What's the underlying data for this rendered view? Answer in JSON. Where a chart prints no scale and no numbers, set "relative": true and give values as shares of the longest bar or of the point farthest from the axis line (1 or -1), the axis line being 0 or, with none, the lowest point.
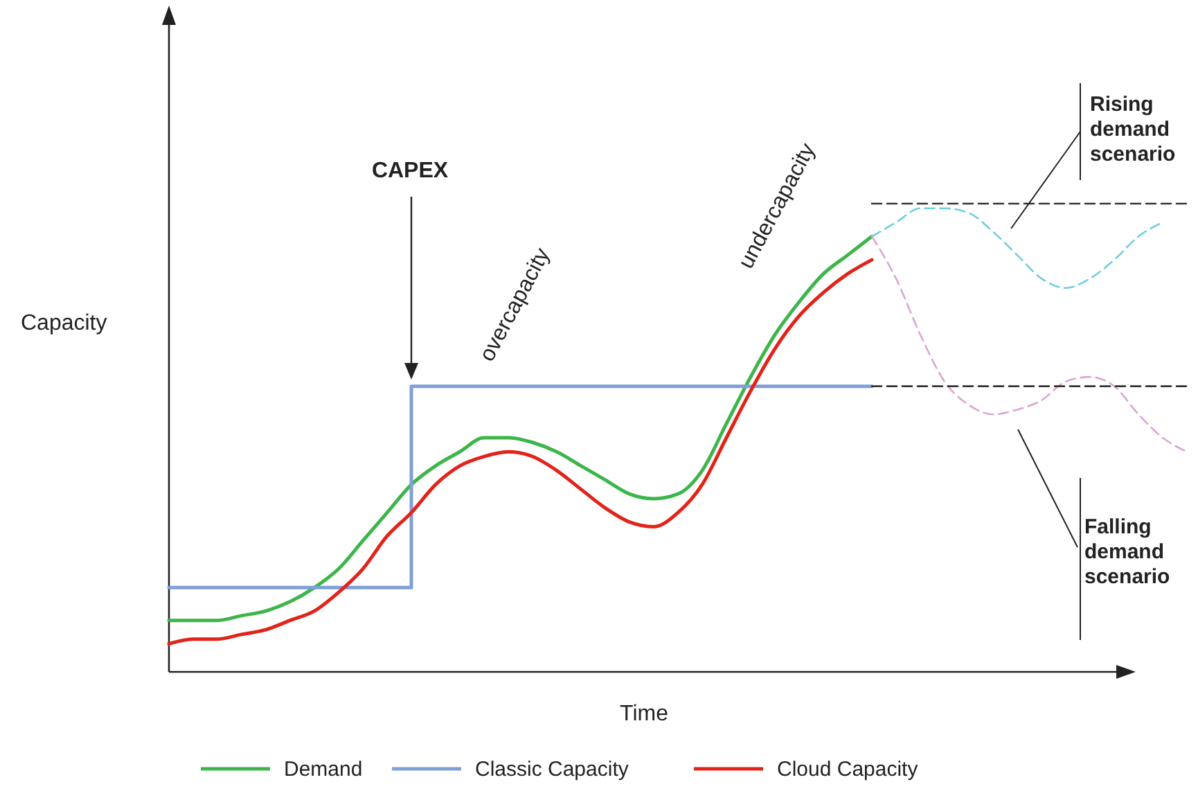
{
  "chart_data": {
    "type": "line",
    "relative": true,
    "xlabel": "Time",
    "ylabel": "Capacity",
    "legend": "bottom",
    "categories": [
      null,
      null,
      null,
      null,
      null,
      null,
      null,
      null,
      null,
      null,
      null,
      null,
      null,
      null,
      null,
      null,
      null,
      null,
      null,
      null,
      null,
      null,
      null,
      null,
      null,
      null,
      null,
      null,
      null,
      null,
      null,
      null,
      null,
      null,
      null,
      null,
      null,
      null,
      null,
      null,
      null,
      null,
      null
    ],
    "series": [
      {
        "name": "Demand",
        "color": "#3db54a",
        "values": [
          0.11,
          0.11,
          0.11,
          0.12,
          0.13,
          0.15,
          0.18,
          0.22,
          0.28,
          0.34,
          0.4,
          0.44,
          0.47,
          0.5,
          0.5,
          0.49,
          0.47,
          0.44,
          0.41,
          0.38,
          0.37,
          0.38,
          0.43,
          0.53,
          0.63,
          0.72,
          0.79,
          0.85,
          0.89,
          0.93,
          null,
          null,
          null,
          null,
          null,
          null,
          null,
          null,
          null,
          null,
          null,
          null,
          null
        ]
      },
      {
        "name": "Classic Capacity",
        "type": "step",
        "color": "#7f9fd6",
        "values": [
          0.18,
          0.18,
          0.18,
          0.18,
          0.18,
          0.18,
          0.18,
          0.18,
          0.18,
          0.18,
          0.61,
          0.61,
          0.61,
          0.61,
          0.61,
          0.61,
          0.61,
          0.61,
          0.61,
          0.61,
          0.61,
          0.61,
          0.61,
          0.61,
          0.61,
          0.61,
          0.61,
          0.61,
          0.61,
          0.61,
          null,
          null,
          null,
          null,
          null,
          null,
          null,
          null,
          null,
          null,
          null,
          null,
          null
        ]
      },
      {
        "name": "Cloud Capacity",
        "color": "#e2231a",
        "values": [
          0.06,
          0.07,
          0.07,
          0.08,
          0.09,
          0.11,
          0.13,
          0.17,
          0.22,
          0.29,
          0.34,
          0.4,
          0.44,
          0.46,
          0.47,
          0.46,
          0.43,
          0.39,
          0.35,
          0.32,
          0.31,
          0.34,
          0.4,
          0.5,
          0.6,
          0.69,
          0.76,
          0.81,
          0.85,
          0.88,
          null,
          null,
          null,
          null,
          null,
          null,
          null,
          null,
          null,
          null,
          null,
          null,
          null
        ]
      },
      {
        "color": "#6fcfdc",
        "line_style": "dashed",
        "values": [
          null,
          null,
          null,
          null,
          null,
          null,
          null,
          null,
          null,
          null,
          null,
          null,
          null,
          null,
          null,
          null,
          null,
          null,
          null,
          null,
          null,
          null,
          null,
          null,
          null,
          null,
          null,
          null,
          null,
          0.93,
          0.96,
          0.99,
          0.99,
          0.98,
          0.94,
          0.89,
          0.84,
          0.82,
          0.84,
          0.88,
          0.93,
          0.96,
          null
        ]
      },
      {
        "color": "#d9a6d2",
        "line_style": "dashed",
        "values": [
          null,
          null,
          null,
          null,
          null,
          null,
          null,
          null,
          null,
          null,
          null,
          null,
          null,
          null,
          null,
          null,
          null,
          null,
          null,
          null,
          null,
          null,
          null,
          null,
          null,
          null,
          null,
          null,
          null,
          0.93,
          0.84,
          0.72,
          0.62,
          0.57,
          0.55,
          0.56,
          0.58,
          0.62,
          0.63,
          0.61,
          0.55,
          0.5,
          0.47
        ]
      },
      {
        "color": "#333333",
        "line_style": "dashed",
        "values": [
          null,
          null,
          null,
          null,
          null,
          null,
          null,
          null,
          null,
          null,
          null,
          null,
          null,
          null,
          null,
          null,
          null,
          null,
          null,
          null,
          null,
          null,
          null,
          null,
          null,
          null,
          null,
          null,
          null,
          0.61,
          0.61,
          0.61,
          0.61,
          0.61,
          0.61,
          0.61,
          0.61,
          0.61,
          0.61,
          0.61,
          0.61,
          0.61,
          0.61
        ]
      },
      {
        "color": "#333333",
        "line_style": "dashed",
        "values": [
          null,
          null,
          null,
          null,
          null,
          null,
          null,
          null,
          null,
          null,
          null,
          null,
          null,
          null,
          null,
          null,
          null,
          null,
          null,
          null,
          null,
          null,
          null,
          null,
          null,
          null,
          null,
          null,
          null,
          1,
          1,
          1,
          1,
          1,
          1,
          1,
          1,
          1,
          1,
          1,
          1,
          1,
          1
        ]
      }
    ],
    "annotations": [
      "CAPEX",
      "overcapacity",
      "undercapacity",
      "Rising demand scenario",
      "Falling demand scenario"
    ]
  }
}
